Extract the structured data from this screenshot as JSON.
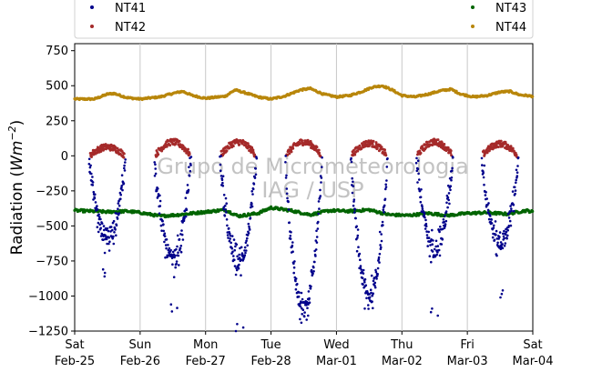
{
  "chart_data": {
    "type": "scatter",
    "xlabel": "",
    "ylabel": "Radiation (Wm⁻²)",
    "ylabel_base": "Radiation (",
    "ylabel_unit": "Wm",
    "ylabel_exp": "−2",
    "ylabel_close": ")",
    "ylim": [
      -1250,
      800
    ],
    "yticks": [
      -1250,
      -1000,
      -750,
      -500,
      -250,
      0,
      250,
      500,
      750
    ],
    "ytick_labels": [
      "−1250",
      "−1000",
      "−750",
      "−500",
      "−250",
      "0",
      "250",
      "500",
      "750"
    ],
    "xlim_days": [
      0,
      7
    ],
    "xticks": [
      {
        "day": 0,
        "line1": "Sat",
        "line2": "Feb-25"
      },
      {
        "day": 1,
        "line1": "Sun",
        "line2": "Feb-26"
      },
      {
        "day": 2,
        "line1": "Mon",
        "line2": "Feb-27"
      },
      {
        "day": 3,
        "line1": "Tue",
        "line2": "Feb-28"
      },
      {
        "day": 4,
        "line1": "Wed",
        "line2": "Mar-01"
      },
      {
        "day": 5,
        "line1": "Thu",
        "line2": "Mar-02"
      },
      {
        "day": 6,
        "line1": "Fri",
        "line2": "Mar-03"
      },
      {
        "day": 7,
        "line1": "Sat",
        "line2": "Mar-04"
      }
    ],
    "grid": "vertical",
    "legend_placement": "top",
    "watermark": [
      "Grupo de Micrometeorologia",
      "IAG / USP"
    ],
    "series": [
      {
        "name": "NT41",
        "color": "#00008b",
        "daily_min": [
          -860,
          -1110,
          -1250,
          -1190,
          -1090,
          -1140,
          -1010
        ],
        "daily_mean_min": [
          -580,
          -740,
          -760,
          -1100,
          -1000,
          -660,
          -620
        ]
      },
      {
        "name": "NT42",
        "color": "#a52a2a",
        "daily_peak": [
          70,
          110,
          110,
          110,
          100,
          110,
          95
        ]
      },
      {
        "name": "NT43",
        "color": "#006400",
        "baseline": -390,
        "points": [
          [
            0,
            -390
          ],
          [
            0.5,
            -400
          ],
          [
            0.8,
            -395
          ],
          [
            1.0,
            -405
          ],
          [
            1.3,
            -430
          ],
          [
            1.6,
            -420
          ],
          [
            2.0,
            -400
          ],
          [
            2.3,
            -385
          ],
          [
            2.5,
            -430
          ],
          [
            2.8,
            -410
          ],
          [
            3.0,
            -370
          ],
          [
            3.3,
            -390
          ],
          [
            3.6,
            -420
          ],
          [
            3.9,
            -390
          ],
          [
            4.2,
            -395
          ],
          [
            4.5,
            -385
          ],
          [
            4.8,
            -420
          ],
          [
            5.1,
            -425
          ],
          [
            5.4,
            -410
          ],
          [
            5.7,
            -425
          ],
          [
            6.0,
            -410
          ],
          [
            6.3,
            -405
          ],
          [
            6.6,
            -415
          ],
          [
            6.9,
            -390
          ],
          [
            7.0,
            -400
          ]
        ]
      },
      {
        "name": "NT44",
        "color": "#b8860b",
        "points": [
          [
            0,
            405
          ],
          [
            0.3,
            405
          ],
          [
            0.5,
            440
          ],
          [
            0.6,
            445
          ],
          [
            0.8,
            415
          ],
          [
            1.0,
            405
          ],
          [
            1.3,
            420
          ],
          [
            1.5,
            445
          ],
          [
            1.65,
            460
          ],
          [
            1.8,
            430
          ],
          [
            2.0,
            410
          ],
          [
            2.3,
            425
          ],
          [
            2.45,
            470
          ],
          [
            2.6,
            450
          ],
          [
            2.8,
            420
          ],
          [
            3.0,
            405
          ],
          [
            3.2,
            425
          ],
          [
            3.45,
            470
          ],
          [
            3.6,
            480
          ],
          [
            3.8,
            440
          ],
          [
            4.0,
            420
          ],
          [
            4.2,
            430
          ],
          [
            4.4,
            460
          ],
          [
            4.55,
            490
          ],
          [
            4.7,
            500
          ],
          [
            4.85,
            470
          ],
          [
            5.0,
            430
          ],
          [
            5.2,
            420
          ],
          [
            5.4,
            440
          ],
          [
            5.6,
            465
          ],
          [
            5.75,
            475
          ],
          [
            5.9,
            440
          ],
          [
            6.1,
            420
          ],
          [
            6.3,
            430
          ],
          [
            6.5,
            455
          ],
          [
            6.65,
            460
          ],
          [
            6.8,
            435
          ],
          [
            7.0,
            425
          ]
        ]
      }
    ]
  }
}
